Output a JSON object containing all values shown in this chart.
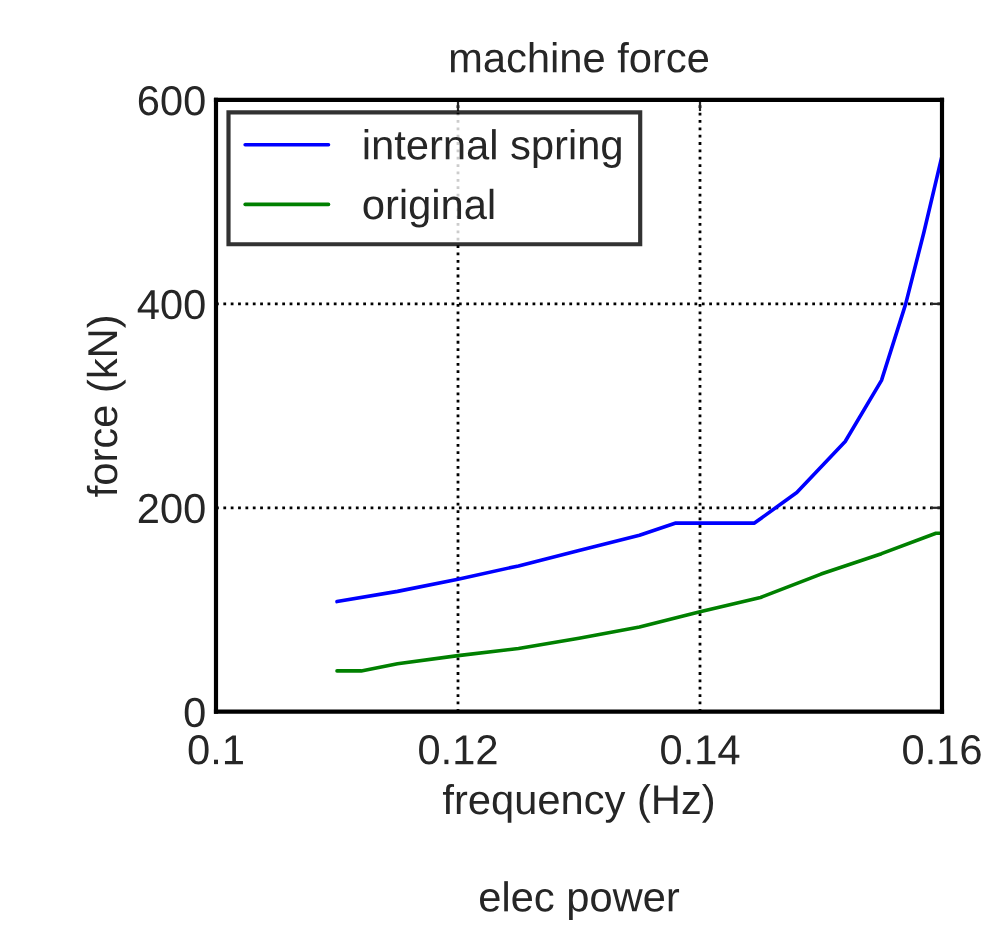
{
  "chart_data": {
    "type": "line",
    "title": "machine force",
    "xlabel": "frequency (Hz)",
    "ylabel": "force (kN)",
    "annotations": [
      "elec power"
    ],
    "xlim": [
      0.1,
      0.16
    ],
    "xticks": [
      0.1,
      0.12,
      0.14,
      0.16
    ],
    "ylim": [
      0,
      600
    ],
    "yticks": [
      0,
      200,
      400,
      600
    ],
    "grid": true,
    "legend": "top left",
    "series": [
      {
        "name": "internal spring",
        "color": "#0000ff",
        "x": [
          0.11,
          0.115,
          0.12,
          0.125,
          0.13,
          0.135,
          0.138,
          0.1445,
          0.148,
          0.152,
          0.155,
          0.157,
          0.1585,
          0.16
        ],
        "values": [
          108,
          118,
          130,
          143,
          158,
          173,
          185,
          185,
          215,
          265,
          325,
          400,
          470,
          545
        ]
      },
      {
        "name": "original",
        "color": "#008000",
        "x": [
          0.11,
          0.112,
          0.115,
          0.12,
          0.125,
          0.13,
          0.135,
          0.14,
          0.145,
          0.15,
          0.155,
          0.1595,
          0.16
        ],
        "values": [
          40,
          40,
          47,
          55,
          62,
          72,
          83,
          98,
          112,
          135,
          155,
          175,
          175
        ]
      }
    ]
  }
}
